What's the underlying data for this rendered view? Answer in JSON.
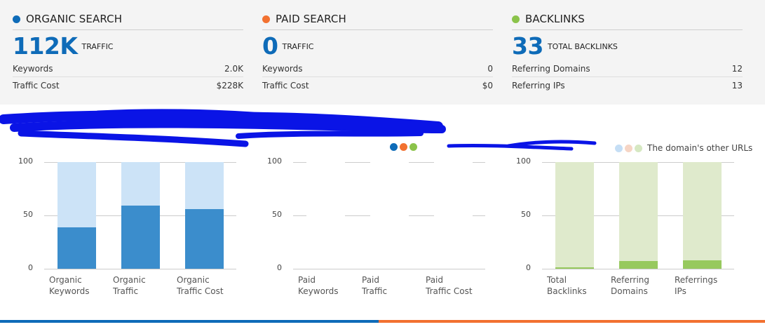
{
  "metrics": {
    "organic": {
      "title": "ORGANIC SEARCH",
      "color": "#0e6bb8",
      "value": "112K",
      "unit": "TRAFFIC",
      "rows": [
        {
          "label": "Keywords",
          "value": "2.0K"
        },
        {
          "label": "Traffic Cost",
          "value": "$228K"
        }
      ]
    },
    "paid": {
      "title": "PAID SEARCH",
      "color": "#f27130",
      "value": "0",
      "unit": "TRAFFIC",
      "rows": [
        {
          "label": "Keywords",
          "value": "0"
        },
        {
          "label": "Traffic Cost",
          "value": "$0"
        }
      ]
    },
    "backlinks": {
      "title": "BACKLINKS",
      "color": "#8bc34a",
      "value": "33",
      "unit": "TOTAL BACKLINKS",
      "rows": [
        {
          "label": "Referring Domains",
          "value": "12"
        },
        {
          "label": "Referring IPs",
          "value": "13"
        }
      ]
    }
  },
  "legend": {
    "other_label": "The domain's other URLs",
    "colors_main": [
      "#0e6bb8",
      "#f27130",
      "#8bc34a"
    ],
    "colors_other": [
      "#c5def5",
      "#f6d5c5",
      "#d6e8c2"
    ]
  },
  "chart_data": [
    {
      "type": "bar",
      "categories": [
        "Organic Keywords",
        "Organic Traffic",
        "Organic Traffic Cost"
      ],
      "category_lines": [
        [
          "Organic",
          "Keywords"
        ],
        [
          "Organic",
          "Traffic"
        ],
        [
          "Organic",
          "Traffic Cost"
        ]
      ],
      "values": [
        39,
        59,
        56
      ],
      "ylim": [
        0,
        100
      ],
      "yticks": [
        "0",
        "50",
        "100"
      ],
      "fg_color": "#3b8dcc",
      "bg_color": "#cce3f7"
    },
    {
      "type": "bar",
      "categories": [
        "Paid Keywords",
        "Paid Traffic",
        "Paid Traffic Cost"
      ],
      "category_lines": [
        [
          "Paid",
          "Keywords"
        ],
        [
          "Paid",
          "Traffic"
        ],
        [
          "Paid",
          "Traffic Cost"
        ]
      ],
      "values": [
        0,
        0,
        0
      ],
      "ylim": [
        0,
        100
      ],
      "yticks": [
        "0",
        "50",
        "100"
      ],
      "fg_color": "#f27130",
      "bg_color": "#ffffff"
    },
    {
      "type": "bar",
      "categories": [
        "Total Backlinks",
        "Referring Domains",
        "Referrings IPs"
      ],
      "category_lines": [
        [
          "Total",
          "Backlinks"
        ],
        [
          "Referring",
          "Domains"
        ],
        [
          "Referrings",
          "IPs"
        ]
      ],
      "values": [
        1,
        7,
        8
      ],
      "ylim": [
        0,
        100
      ],
      "yticks": [
        "0",
        "50",
        "100"
      ],
      "fg_color": "#97c95e",
      "bg_color": "#dfeacc"
    }
  ]
}
